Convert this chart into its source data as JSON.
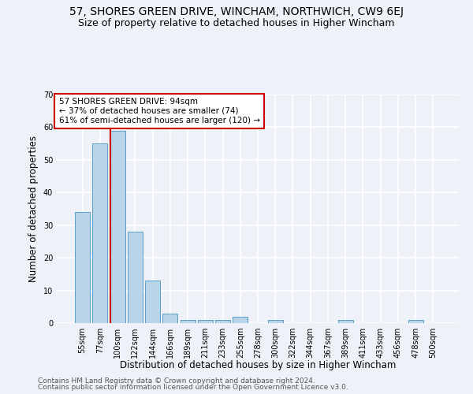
{
  "title": "57, SHORES GREEN DRIVE, WINCHAM, NORTHWICH, CW9 6EJ",
  "subtitle": "Size of property relative to detached houses in Higher Wincham",
  "xlabel": "Distribution of detached houses by size in Higher Wincham",
  "ylabel": "Number of detached properties",
  "categories": [
    "55sqm",
    "77sqm",
    "100sqm",
    "122sqm",
    "144sqm",
    "166sqm",
    "189sqm",
    "211sqm",
    "233sqm",
    "255sqm",
    "278sqm",
    "300sqm",
    "322sqm",
    "344sqm",
    "367sqm",
    "389sqm",
    "411sqm",
    "433sqm",
    "456sqm",
    "478sqm",
    "500sqm"
  ],
  "values": [
    34,
    55,
    59,
    28,
    13,
    3,
    1,
    1,
    1,
    2,
    0,
    1,
    0,
    0,
    0,
    1,
    0,
    0,
    0,
    1,
    0
  ],
  "bar_color": "#b8d4e8",
  "bar_edge_color": "#5a9ec9",
  "vline_color": "#cc0000",
  "annotation_text": "57 SHORES GREEN DRIVE: 94sqm\n← 37% of detached houses are smaller (74)\n61% of semi-detached houses are larger (120) →",
  "annotation_box_color": "white",
  "annotation_box_edge_color": "#cc0000",
  "ylim": [
    0,
    70
  ],
  "yticks": [
    0,
    10,
    20,
    30,
    40,
    50,
    60,
    70
  ],
  "footnote1": "Contains HM Land Registry data © Crown copyright and database right 2024.",
  "footnote2": "Contains public sector information licensed under the Open Government Licence v3.0.",
  "bg_color": "#eef2f8",
  "grid_color": "white",
  "title_fontsize": 10,
  "subtitle_fontsize": 9,
  "label_fontsize": 8.5,
  "tick_fontsize": 7,
  "annotation_fontsize": 7.5,
  "footnote_fontsize": 6.5
}
